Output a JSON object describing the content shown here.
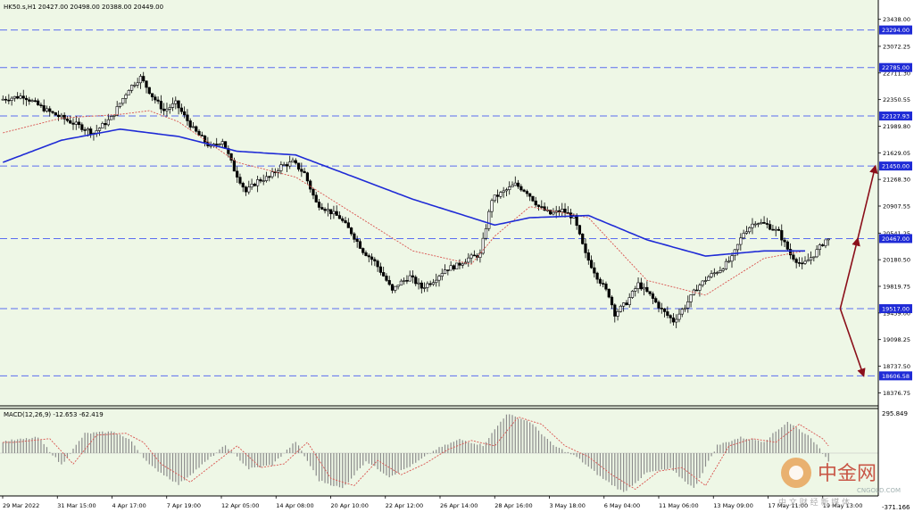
{
  "symbol_header": "HK50.s,H1  20427.00 20498.00 20388.00 20449.00",
  "macd_header": "MACD(12,26,9) -12.653 -62.419",
  "colors": {
    "background": "#eef7e6",
    "candle": "#000000",
    "sma_long": "#1f2bd6",
    "sma_short": "#d9534f",
    "level_line": "#5b6df0",
    "level_label_bg": "#1f2bd6",
    "arrow": "#8b0f1a",
    "macd_hist": "#8c8c8c",
    "macd_signal": "#d9534f"
  },
  "chart_data": {
    "type": "candlestick",
    "price_axis": {
      "min": 18200,
      "max": 23700,
      "tick_labels": [
        "23438.00",
        "23072.25",
        "22711.30",
        "22350.55",
        "21989.80",
        "21629.05",
        "21268.30",
        "20907.55",
        "20541.25",
        "20180.50",
        "19819.75",
        "19459.00",
        "19098.25",
        "18737.50",
        "18376.75"
      ]
    },
    "time_axis_labels": [
      "29 Mar 2022",
      "31 Mar 15:00",
      "4 Apr 17:00",
      "7 Apr 19:00",
      "12 Apr 05:00",
      "14 Apr 08:00",
      "20 Apr 10:00",
      "22 Apr 12:00",
      "26 Apr 14:00",
      "28 Apr 16:00",
      "3 May 18:00",
      "6 May 04:00",
      "11 May 06:00",
      "13 May 09:00",
      "17 May 11:00",
      "19 May 13:00"
    ],
    "horizontal_levels": [
      23294.0,
      22785.0,
      22127.93,
      21450.0,
      20467.0,
      19517.0,
      18606.58
    ],
    "level_labels": [
      "23294.00",
      "22785.00",
      "22127.93",
      "21450.00",
      "20467.00",
      "19517.00",
      "18606.58"
    ],
    "price_path": [
      [
        0,
        22350
      ],
      [
        4,
        22400
      ],
      [
        8,
        22200
      ],
      [
        12,
        22050
      ],
      [
        16,
        21900
      ],
      [
        19,
        22100
      ],
      [
        22,
        22500
      ],
      [
        24,
        22650
      ],
      [
        26,
        22400
      ],
      [
        28,
        22200
      ],
      [
        30,
        22300
      ],
      [
        33,
        21950
      ],
      [
        36,
        21700
      ],
      [
        38,
        21800
      ],
      [
        40,
        21400
      ],
      [
        42,
        21100
      ],
      [
        44,
        21250
      ],
      [
        46,
        21300
      ],
      [
        48,
        21450
      ],
      [
        50,
        21500
      ],
      [
        52,
        21350
      ],
      [
        54,
        20950
      ],
      [
        56,
        20850
      ],
      [
        58,
        20750
      ],
      [
        60,
        20550
      ],
      [
        62,
        20300
      ],
      [
        64,
        20150
      ],
      [
        66,
        19900
      ],
      [
        67,
        19750
      ],
      [
        68,
        19850
      ],
      [
        70,
        19950
      ],
      [
        72,
        19800
      ],
      [
        74,
        19900
      ],
      [
        76,
        20050
      ],
      [
        78,
        20100
      ],
      [
        80,
        20200
      ],
      [
        82,
        20250
      ],
      [
        84,
        21000
      ],
      [
        86,
        21100
      ],
      [
        88,
        21200
      ],
      [
        90,
        21100
      ],
      [
        92,
        20900
      ],
      [
        94,
        20800
      ],
      [
        96,
        20850
      ],
      [
        98,
        20750
      ],
      [
        100,
        20250
      ],
      [
        102,
        19950
      ],
      [
        104,
        19700
      ],
      [
        105,
        19450
      ],
      [
        107,
        19600
      ],
      [
        109,
        19850
      ],
      [
        111,
        19700
      ],
      [
        113,
        19500
      ],
      [
        115,
        19350
      ],
      [
        117,
        19550
      ],
      [
        119,
        19800
      ],
      [
        121,
        19950
      ],
      [
        123,
        20050
      ],
      [
        125,
        20200
      ],
      [
        127,
        20550
      ],
      [
        129,
        20700
      ],
      [
        131,
        20650
      ],
      [
        133,
        20550
      ],
      [
        135,
        20250
      ],
      [
        137,
        20100
      ],
      [
        139,
        20250
      ],
      [
        141,
        20449
      ]
    ],
    "sma_long_path": [
      [
        0,
        21500
      ],
      [
        10,
        21800
      ],
      [
        20,
        21950
      ],
      [
        30,
        21850
      ],
      [
        40,
        21650
      ],
      [
        50,
        21600
      ],
      [
        60,
        21300
      ],
      [
        70,
        21000
      ],
      [
        80,
        20750
      ],
      [
        84,
        20650
      ],
      [
        90,
        20750
      ],
      [
        100,
        20780
      ],
      [
        110,
        20450
      ],
      [
        120,
        20230
      ],
      [
        130,
        20300
      ],
      [
        137,
        20300
      ]
    ],
    "sma_short_path": [
      [
        0,
        21900
      ],
      [
        10,
        22100
      ],
      [
        20,
        22150
      ],
      [
        25,
        22200
      ],
      [
        30,
        22050
      ],
      [
        40,
        21500
      ],
      [
        50,
        21300
      ],
      [
        60,
        20800
      ],
      [
        70,
        20300
      ],
      [
        80,
        20120
      ],
      [
        84,
        20500
      ],
      [
        90,
        20900
      ],
      [
        100,
        20750
      ],
      [
        110,
        19900
      ],
      [
        120,
        19700
      ],
      [
        130,
        20200
      ],
      [
        137,
        20300
      ]
    ],
    "projection_arrows": [
      {
        "from": [
          143,
          19517
        ],
        "to": [
          146,
          20467
        ]
      },
      {
        "from": [
          146,
          20467
        ],
        "to": [
          149,
          21450
        ]
      },
      {
        "from": [
          143,
          19517
        ],
        "to": [
          147,
          18606.58
        ]
      }
    ],
    "macd": {
      "range": [
        -1,
        1
      ],
      "top_label": "295.849",
      "bottom_label": "-371.166",
      "histogram_path": [
        [
          0,
          0.3
        ],
        [
          6,
          0.4
        ],
        [
          10,
          -0.3
        ],
        [
          14,
          0.5
        ],
        [
          19,
          0.55
        ],
        [
          22,
          0.3
        ],
        [
          25,
          -0.3
        ],
        [
          30,
          -0.8
        ],
        [
          34,
          -0.3
        ],
        [
          38,
          0.2
        ],
        [
          42,
          -0.4
        ],
        [
          46,
          -0.3
        ],
        [
          50,
          0.3
        ],
        [
          54,
          -0.7
        ],
        [
          58,
          -0.9
        ],
        [
          62,
          -0.2
        ],
        [
          66,
          -0.6
        ],
        [
          70,
          -0.3
        ],
        [
          74,
          0.1
        ],
        [
          78,
          0.35
        ],
        [
          82,
          0.2
        ],
        [
          86,
          1.0
        ],
        [
          90,
          0.8
        ],
        [
          94,
          0.2
        ],
        [
          98,
          -0.1
        ],
        [
          102,
          -0.6
        ],
        [
          106,
          -1.0
        ],
        [
          110,
          -0.5
        ],
        [
          114,
          -0.4
        ],
        [
          118,
          -0.9
        ],
        [
          122,
          0.2
        ],
        [
          126,
          0.4
        ],
        [
          130,
          0.3
        ],
        [
          134,
          0.8
        ],
        [
          138,
          0.4
        ],
        [
          141,
          -0.2
        ]
      ]
    }
  },
  "watermark": {
    "logo_text": "中金网",
    "domain_text": "CNGOLD.COM",
    "tagline": "中 文 财 经 新 媒 体"
  }
}
